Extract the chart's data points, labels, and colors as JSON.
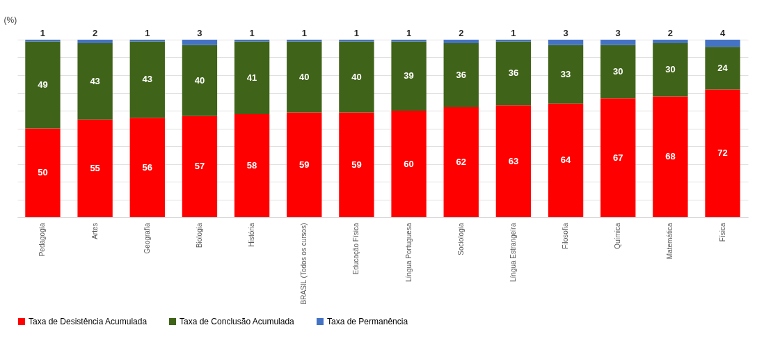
{
  "chart_data": {
    "type": "bar",
    "stacked": true,
    "ylabel": "(%)",
    "categories": [
      "Pedagogia",
      "Artes",
      "Geografia",
      "Biologia",
      "História",
      "BRASIL (Todos os cursos)",
      "Educação Física",
      "Língua Portuguesa",
      "Sociologia",
      "Língua Estrangeira",
      "Filosofia",
      "Química",
      "Matemática",
      "Física"
    ],
    "series": [
      {
        "name": "Taxa de Desistência Acumulada",
        "color": "#ff0000",
        "values": [
          50,
          55,
          56,
          57,
          58,
          59,
          59,
          60,
          62,
          63,
          64,
          67,
          68,
          72
        ]
      },
      {
        "name": "Taxa de Conclusão Acumulada",
        "color": "#3f6318",
        "values": [
          49,
          43,
          43,
          40,
          41,
          40,
          40,
          39,
          36,
          36,
          33,
          30,
          30,
          24
        ]
      },
      {
        "name": "Taxa de Permanência",
        "color": "#4472c4",
        "values": [
          1,
          2,
          1,
          3,
          1,
          1,
          1,
          1,
          2,
          1,
          3,
          3,
          2,
          4
        ]
      }
    ],
    "ylim": [
      0,
      100
    ],
    "tick_labels": "x",
    "grid": "y",
    "legend": "bottom",
    "data_labels": true
  }
}
